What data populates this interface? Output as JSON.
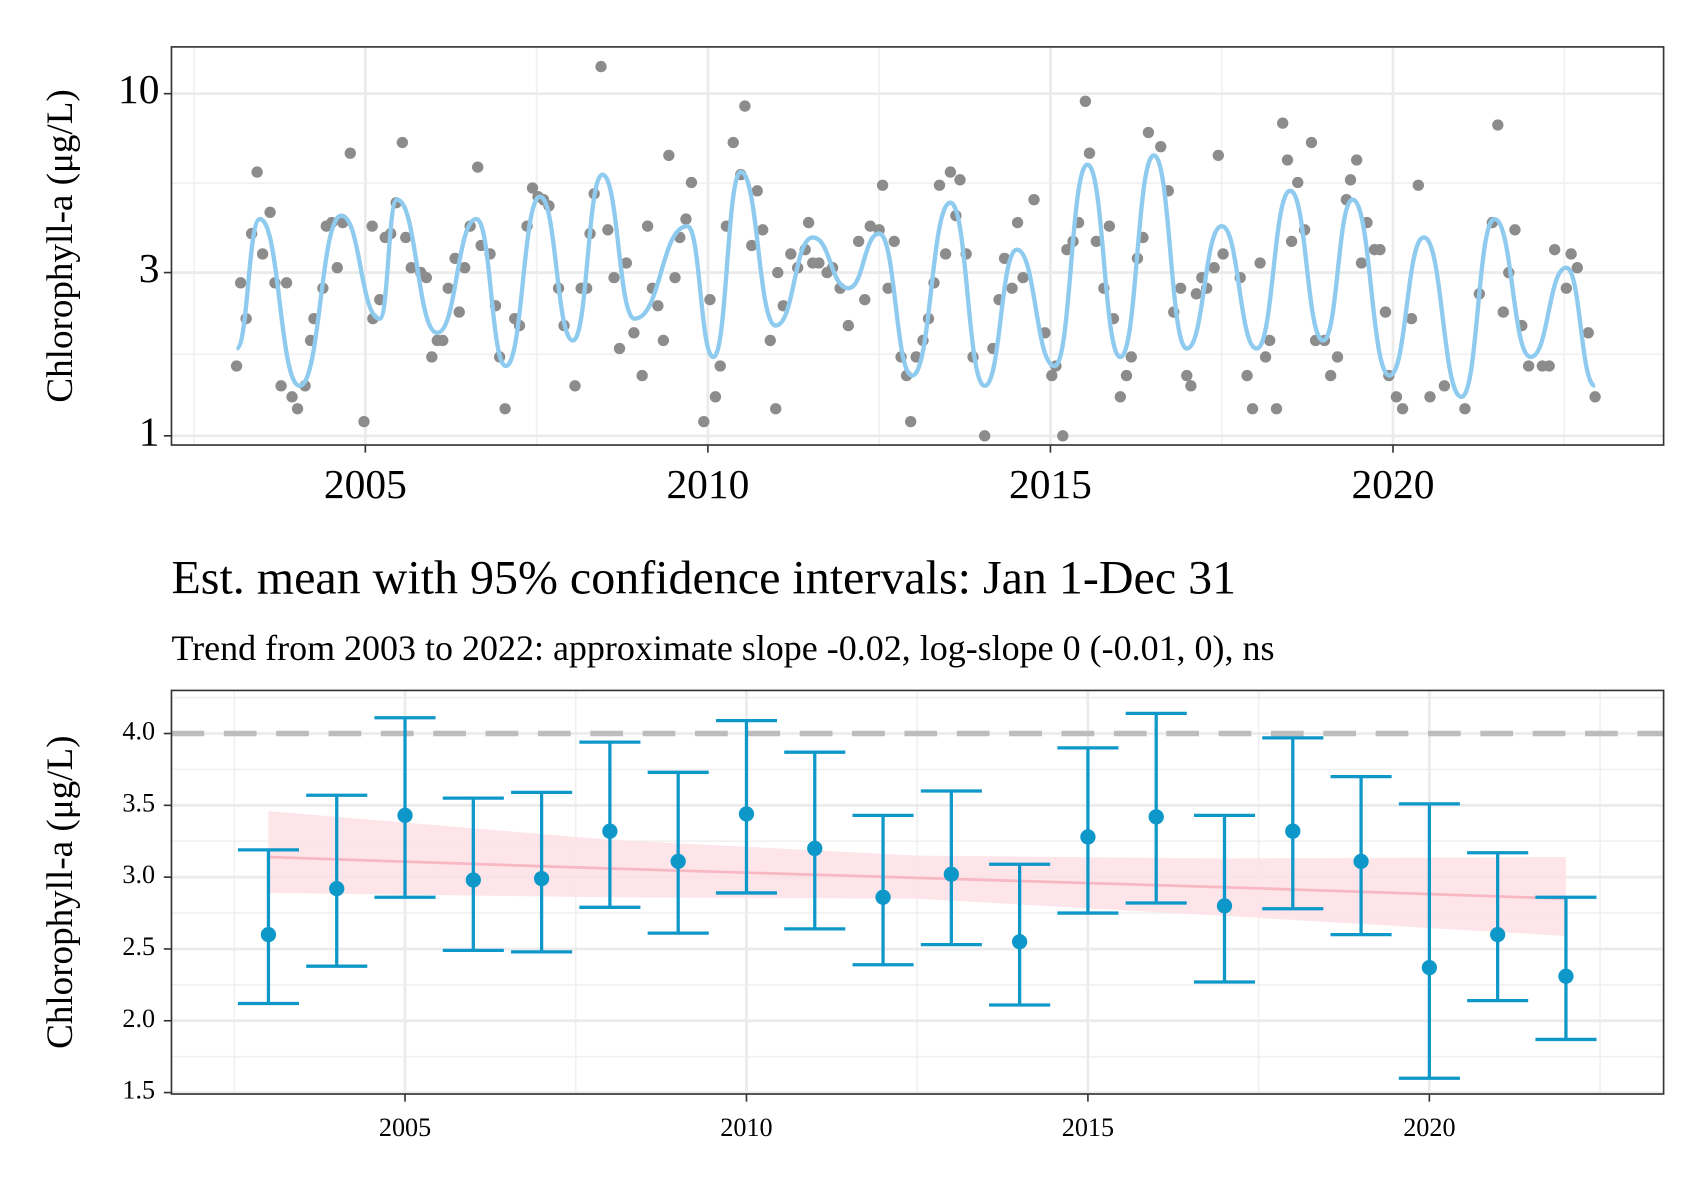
{
  "chart_data": [
    {
      "type": "scatter",
      "ylabel": "Chlorophyll-a (μg/L)",
      "log_y": true,
      "grid": true,
      "xlim": [
        2002.17,
        2023.95
      ],
      "ylim": [
        0.94,
        13.7
      ],
      "xticks": [
        2005,
        2010,
        2015,
        2020
      ],
      "yticks": [
        1,
        3,
        10
      ],
      "series": [
        {
          "kind": "points",
          "color": "#8c8c8c",
          "x": [
            2003.12,
            2003.18,
            2003.26,
            2003.34,
            2003.42,
            2003.5,
            2003.61,
            2003.68,
            2003.77,
            2003.85,
            2003.93,
            2004.01,
            2004.12,
            2004.2,
            2004.25,
            2004.38,
            2004.43,
            2004.51,
            2004.59,
            2004.67,
            2004.78,
            2004.98,
            2005.1,
            2005.11,
            2005.21,
            2005.29,
            2005.37,
            2005.45,
            2005.54,
            2005.59,
            2005.67,
            2005.81,
            2005.89,
            2005.97,
            2006.05,
            2006.13,
            2006.21,
            2006.31,
            2006.37,
            2006.45,
            2006.53,
            2006.64,
            2006.69,
            2006.82,
            2006.9,
            2006.96,
            2007.04,
            2007.18,
            2007.25,
            2007.36,
            2007.44,
            2007.52,
            2007.6,
            2007.68,
            2007.82,
            2007.9,
            2008.06,
            2008.15,
            2008.23,
            2008.28,
            2008.34,
            2008.44,
            2008.54,
            2008.63,
            2008.71,
            2008.81,
            2008.92,
            2009.04,
            2009.12,
            2009.19,
            2009.27,
            2009.35,
            2009.43,
            2009.52,
            2009.59,
            2009.68,
            2009.76,
            2009.94,
            2010.03,
            2010.11,
            2010.18,
            2010.27,
            2010.37,
            2010.48,
            2010.54,
            2010.64,
            2010.72,
            2010.8,
            2010.91,
            2010.99,
            2011.02,
            2011.1,
            2011.21,
            2011.31,
            2011.42,
            2011.47,
            2011.53,
            2011.62,
            2011.74,
            2011.82,
            2011.93,
            2012.05,
            2012.2,
            2012.29,
            2012.37,
            2012.5,
            2012.55,
            2012.63,
            2012.72,
            2012.82,
            2012.9,
            2012.96,
            2013.04,
            2013.14,
            2013.22,
            2013.3,
            2013.38,
            2013.47,
            2013.54,
            2013.62,
            2013.68,
            2013.77,
            2013.87,
            2014.04,
            2014.16,
            2014.25,
            2014.33,
            2014.44,
            2014.52,
            2014.6,
            2014.76,
            2014.92,
            2015.02,
            2015.08,
            2015.18,
            2015.24,
            2015.33,
            2015.41,
            2015.51,
            2015.57,
            2015.67,
            2015.78,
            2015.86,
            2015.92,
            2016.02,
            2016.11,
            2016.18,
            2016.27,
            2016.35,
            2016.43,
            2016.61,
            2016.72,
            2016.8,
            2016.9,
            2016.99,
            2017.05,
            2017.13,
            2017.21,
            2017.28,
            2017.39,
            2017.45,
            2017.52,
            2017.77,
            2017.87,
            2017.95,
            2018.06,
            2018.14,
            2018.2,
            2018.3,
            2018.39,
            2018.46,
            2018.52,
            2018.61,
            2018.71,
            2018.81,
            2018.87,
            2019.0,
            2019.09,
            2019.19,
            2019.32,
            2019.38,
            2019.47,
            2019.54,
            2019.62,
            2019.73,
            2019.81,
            2019.89,
            2019.94,
            2020.05,
            2020.14,
            2020.27,
            2020.37,
            2020.54,
            2020.75,
            2021.05,
            2021.26,
            2021.45,
            2021.53,
            2021.61,
            2021.69,
            2021.78,
            2021.88,
            2021.98,
            2022.18,
            2022.28,
            2022.36,
            2022.53,
            2022.6,
            2022.69,
            2022.85,
            2022.95
          ],
          "values": [
            1.6,
            2.8,
            2.2,
            3.9,
            5.9,
            3.4,
            4.5,
            2.8,
            1.4,
            2.8,
            1.3,
            1.2,
            1.4,
            1.9,
            2.2,
            2.7,
            4.1,
            4.2,
            3.1,
            4.2,
            6.7,
            1.1,
            4.1,
            2.2,
            2.5,
            3.8,
            3.9,
            4.8,
            7.2,
            3.8,
            3.1,
            3.0,
            2.9,
            1.7,
            1.9,
            1.9,
            2.7,
            3.3,
            2.3,
            3.1,
            4.1,
            6.1,
            3.6,
            3.4,
            2.4,
            1.7,
            1.2,
            2.2,
            2.1,
            4.1,
            5.3,
            5.0,
            4.9,
            4.7,
            2.7,
            2.1,
            1.4,
            2.7,
            2.7,
            3.9,
            5.1,
            12,
            4.0,
            2.9,
            1.8,
            3.2,
            2.0,
            1.5,
            4.1,
            2.7,
            2.4,
            1.9,
            6.6,
            2.9,
            3.8,
            4.3,
            5.5,
            1.1,
            2.5,
            1.3,
            1.6,
            4.1,
            7.2,
            5.8,
            9.2,
            3.6,
            5.2,
            4.0,
            1.9,
            1.2,
            3.0,
            2.4,
            3.4,
            3.1,
            3.5,
            4.2,
            3.2,
            3.2,
            3.0,
            3.1,
            2.7,
            2.1,
            3.7,
            2.5,
            4.1,
            4.0,
            5.4,
            2.7,
            3.7,
            1.7,
            1.5,
            1.1,
            1.7,
            1.9,
            2.2,
            2.8,
            5.4,
            3.4,
            5.9,
            4.4,
            5.6,
            3.4,
            1.7,
            1.0,
            1.8,
            2.5,
            3.3,
            2.7,
            4.2,
            2.9,
            4.9,
            2.0,
            1.5,
            1.6,
            1.0,
            3.5,
            3.7,
            4.2,
            9.5,
            6.7,
            3.7,
            2.7,
            4.1,
            2.2,
            1.3,
            1.5,
            1.7,
            3.3,
            3.8,
            7.7,
            7.0,
            5.2,
            2.3,
            2.7,
            1.5,
            1.4,
            2.6,
            2.9,
            2.7,
            3.1,
            6.6,
            3.4,
            2.9,
            1.5,
            1.2,
            3.2,
            1.7,
            1.9,
            1.2,
            8.2,
            6.4,
            3.7,
            5.5,
            4.0,
            7.2,
            1.9,
            1.9,
            1.5,
            1.7,
            4.9,
            5.6,
            6.4,
            3.2,
            4.2,
            3.5,
            3.5,
            2.3,
            1.5,
            1.3,
            1.2,
            2.2,
            5.4,
            1.3,
            1.4,
            1.2,
            2.6,
            4.2,
            8.1,
            2.3,
            3.0,
            4.0,
            2.1,
            1.6,
            1.6,
            1.6,
            3.5,
            2.7,
            3.4,
            3.1,
            2.0,
            1.3
          ]
        },
        {
          "kind": "line",
          "color": "#8ecbef",
          "x": [
            2003.12,
            2003.46,
            2004.04,
            2004.65,
            2005.21,
            2005.46,
            2006.05,
            2006.62,
            2007.05,
            2007.55,
            2008.03,
            2008.46,
            2008.93,
            2009.7,
            2010.08,
            2010.48,
            2010.99,
            2011.53,
            2012.05,
            2012.5,
            2012.98,
            2013.54,
            2014.04,
            2014.51,
            2015.06,
            2015.54,
            2016.02,
            2016.51,
            2016.99,
            2017.5,
            2018.01,
            2018.5,
            2018.98,
            2019.41,
            2019.95,
            2020.45,
            2021.0,
            2021.48,
            2022.01,
            2022.53,
            2022.95
          ],
          "values": [
            1.8,
            4.3,
            1.4,
            4.4,
            2.2,
            4.9,
            2.0,
            4.3,
            1.6,
            5.0,
            1.9,
            5.8,
            2.2,
            4.1,
            1.7,
            5.9,
            2.1,
            3.8,
            2.7,
            3.9,
            1.5,
            4.8,
            1.4,
            3.5,
            1.6,
            6.2,
            1.7,
            6.6,
            1.8,
            4.1,
            1.8,
            5.2,
            1.9,
            4.9,
            1.5,
            3.8,
            1.3,
            4.3,
            1.7,
            3.1,
            1.4
          ]
        }
      ]
    },
    {
      "type": "errorbar",
      "title": "Est. mean with 95% confidence intervals: Jan 1-Dec 31",
      "subtitle": "Trend from 2003 to 2022: approximate slope -0.02, log-slope 0 (-0.01, 0), ns",
      "ylabel": "Chlorophyll-a (μg/L)",
      "grid": true,
      "xlim": [
        2001.58,
        2023.43
      ],
      "ylim": [
        1.49,
        4.3
      ],
      "xticks": [
        2005,
        2010,
        2015,
        2020
      ],
      "yticks": [
        1.5,
        {
          "value": 2,
          "label": "2.0"
        },
        2.5,
        {
          "value": 3,
          "label": "3.0"
        },
        3.5,
        {
          "value": 4,
          "label": "4.0"
        }
      ],
      "hline": 4,
      "hline_color": "#bdbdbd",
      "color": "#0d98c9",
      "x": [
        2003,
        2004,
        2005,
        2006,
        2007,
        2008,
        2009,
        2010,
        2011,
        2012,
        2013,
        2014,
        2015,
        2016,
        2017,
        2018,
        2019,
        2020,
        2021,
        2022
      ],
      "values": [
        2.6,
        2.92,
        3.43,
        2.98,
        2.99,
        3.32,
        3.11,
        3.44,
        3.2,
        2.86,
        3.02,
        2.55,
        3.28,
        3.42,
        2.8,
        3.32,
        3.11,
        2.37,
        2.6,
        2.31
      ],
      "lower": [
        2.12,
        2.38,
        2.86,
        2.49,
        2.48,
        2.79,
        2.61,
        2.89,
        2.64,
        2.39,
        2.53,
        2.11,
        2.75,
        2.82,
        2.27,
        2.78,
        2.6,
        1.6,
        2.14,
        1.87
      ],
      "upper": [
        3.19,
        3.57,
        4.11,
        3.55,
        3.59,
        3.94,
        3.73,
        4.09,
        3.87,
        3.43,
        3.6,
        3.09,
        3.9,
        4.14,
        3.43,
        3.97,
        3.7,
        3.51,
        3.17,
        2.86
      ],
      "trend": {
        "color": "#f7b8c4",
        "fill": "#fde0e5",
        "x": [
          2003,
          2008,
          2012.5,
          2017,
          2022
        ],
        "values": [
          3.14,
          3.06,
          2.995,
          2.93,
          2.85
        ],
        "lower": [
          2.89,
          2.86,
          2.85,
          2.73,
          2.59
        ],
        "upper": [
          3.46,
          3.26,
          3.15,
          3.13,
          3.14
        ]
      }
    }
  ]
}
